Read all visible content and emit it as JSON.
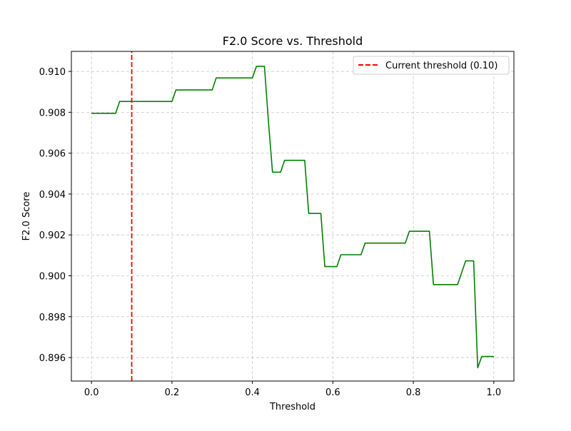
{
  "chart_data": {
    "type": "line",
    "title": "F2.0 Score vs. Threshold",
    "xlabel": "Threshold",
    "ylabel": "F2.0 Score",
    "xlim": [
      -0.05,
      1.05
    ],
    "ylim": [
      0.89485,
      0.91098
    ],
    "x_ticks": [
      0.0,
      0.2,
      0.4,
      0.6,
      0.8,
      1.0
    ],
    "x_tick_labels": [
      "0.0",
      "0.2",
      "0.4",
      "0.6",
      "0.8",
      "1.0"
    ],
    "y_ticks": [
      0.896,
      0.898,
      0.9,
      0.902,
      0.904,
      0.906,
      0.908,
      0.91
    ],
    "y_tick_labels": [
      "0.896",
      "0.898",
      "0.900",
      "0.902",
      "0.904",
      "0.906",
      "0.908",
      "0.910"
    ],
    "grid": true,
    "legend_position": "top-right",
    "series": [
      {
        "color": "#008000",
        "x": [
          0.0,
          0.02,
          0.04,
          0.06,
          0.07,
          0.08,
          0.1,
          0.12,
          0.14,
          0.16,
          0.18,
          0.2,
          0.21,
          0.22,
          0.24,
          0.26,
          0.28,
          0.3,
          0.31,
          0.32,
          0.34,
          0.36,
          0.38,
          0.4,
          0.41,
          0.42,
          0.43,
          0.44,
          0.45,
          0.46,
          0.47,
          0.48,
          0.5,
          0.52,
          0.53,
          0.54,
          0.56,
          0.57,
          0.58,
          0.6,
          0.61,
          0.62,
          0.64,
          0.66,
          0.67,
          0.68,
          0.7,
          0.72,
          0.74,
          0.76,
          0.78,
          0.79,
          0.8,
          0.82,
          0.84,
          0.85,
          0.86,
          0.88,
          0.9,
          0.91,
          0.92,
          0.93,
          0.94,
          0.95,
          0.96,
          0.97,
          0.98,
          0.99,
          1.0
        ],
        "y": [
          0.90795,
          0.90795,
          0.90795,
          0.90795,
          0.90853,
          0.90853,
          0.90853,
          0.90853,
          0.90853,
          0.90853,
          0.90853,
          0.90853,
          0.90909,
          0.90909,
          0.90909,
          0.90909,
          0.90909,
          0.90909,
          0.90968,
          0.90968,
          0.90968,
          0.90968,
          0.90968,
          0.90968,
          0.91025,
          0.91025,
          0.91025,
          0.9075,
          0.90507,
          0.90507,
          0.90507,
          0.90565,
          0.90565,
          0.90565,
          0.90565,
          0.90305,
          0.90305,
          0.90305,
          0.90045,
          0.90045,
          0.90045,
          0.90103,
          0.90103,
          0.90103,
          0.90103,
          0.9016,
          0.9016,
          0.9016,
          0.9016,
          0.9016,
          0.9016,
          0.90218,
          0.90218,
          0.90218,
          0.90218,
          0.89957,
          0.89957,
          0.89957,
          0.89957,
          0.89957,
          0.90015,
          0.90073,
          0.90073,
          0.90073,
          0.8955,
          0.89605,
          0.89605,
          0.89605,
          0.89605
        ]
      },
      {
        "name": "Current threshold (0.10)",
        "color": "#ff0000",
        "style": "dashed",
        "x": [
          0.1,
          0.1
        ],
        "y": [
          0.89485,
          0.91098
        ]
      }
    ]
  }
}
